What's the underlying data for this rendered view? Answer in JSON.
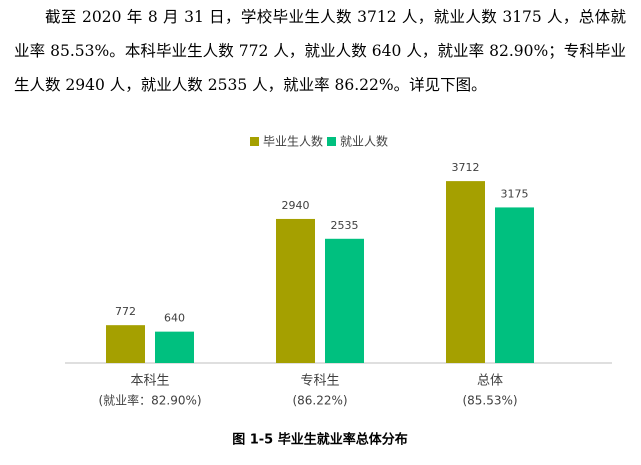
{
  "paragraph": "截至 2020 年 8 月 31 日，学校毕业生人数 3712 人，就业人数 3175 人，总体就业率 85.53%。本科毕业生人数 772 人，就业人数 640 人，就业率 82.90%；专科毕业生人数 2940 人，就业人数 2535 人，就业率 86.22%。详见下图。",
  "chart_data": {
    "type": "bar",
    "categories": [
      "本科生",
      "专科生",
      "总体"
    ],
    "category_notes": [
      "(就业率：82.90%)",
      "(86.22%)",
      "(85.53%)"
    ],
    "series": [
      {
        "name": "毕业生人数",
        "color": "#a5a000",
        "values": [
          772,
          2940,
          3712
        ]
      },
      {
        "name": "就业人数",
        "color": "#00c07f",
        "values": [
          640,
          2535,
          3175
        ]
      }
    ],
    "ylim": [
      0,
      4000
    ]
  },
  "caption": "图 1-5  毕业生就业率总体分布"
}
